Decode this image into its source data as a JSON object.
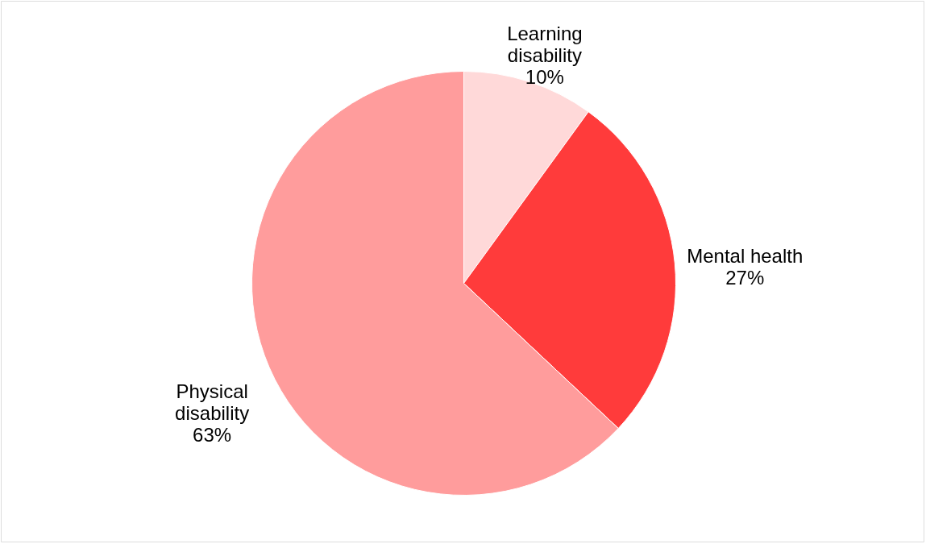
{
  "chart_data": {
    "type": "pie",
    "categories": [
      "Learning disability",
      "Mental health",
      "Physical disability"
    ],
    "values": [
      10,
      27,
      63
    ],
    "value_labels": [
      "10%",
      "27%",
      "63%"
    ],
    "colors": [
      "#ffd9d9",
      "#ff3b3b",
      "#ff9c9c"
    ]
  }
}
